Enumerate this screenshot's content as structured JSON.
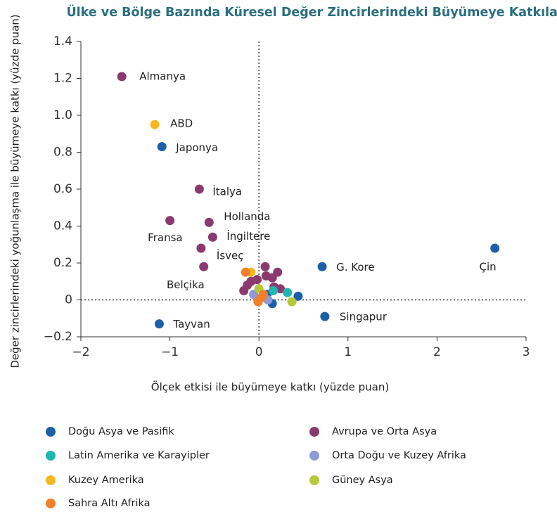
{
  "chart_data": {
    "type": "scatter",
    "title": "Ülke ve Bölge Bazında Küresel Değer Zincirlerindeki Büyümeye Katkılar",
    "x_label": "Ölçek etkisi ile büyümeye katkı (yüzde puan)",
    "y_label": "Değer zincirlerindeki yoğunlaşma ile büyümeye katkı (yüzde puan)",
    "xlim": [
      -2,
      3
    ],
    "xticks": [
      {
        "value": -2,
        "label": "−2"
      },
      {
        "value": -1,
        "label": "−1"
      },
      0,
      1,
      2,
      3
    ],
    "ylim": [
      -0.2,
      1.4
    ],
    "yticks": [
      {
        "value": -0.2,
        "label": "−0.2"
      },
      0,
      0.2,
      0.4,
      0.6,
      0.8,
      {
        "value": 1.0,
        "label": "1.0"
      },
      1.2,
      1.4
    ],
    "series": [
      {
        "name": "Doğu Asya ve Pasifik",
        "color": "#1f5fa8",
        "x": [
          -1.09,
          -1.12,
          0.71,
          2.65,
          0.74,
          0.44,
          0.15,
          0.09
        ],
        "values": [
          0.83,
          -0.13,
          0.18,
          0.28,
          -0.09,
          0.02,
          -0.02,
          0.03
        ],
        "labels": [
          "Japonya",
          "Tayvan",
          "G. Kore",
          "Çin",
          "Singapur",
          null,
          null,
          null
        ]
      },
      {
        "name": "Latin Amerika ve Karayipler",
        "color": "#1fb5b0",
        "x": [
          0.16,
          0.32
        ],
        "values": [
          0.05,
          0.04
        ],
        "labels": [
          null,
          null
        ]
      },
      {
        "name": "Kuzey Amerika",
        "color": "#f5b820",
        "x": [
          -1.17,
          -0.09
        ],
        "values": [
          0.95,
          0.15
        ],
        "labels": [
          "ABD",
          null
        ]
      },
      {
        "name": "Sahra Altı Afrika",
        "color": "#f07f2a",
        "x": [
          -0.15,
          0.02,
          -0.01,
          0.05
        ],
        "values": [
          0.15,
          0.01,
          -0.01,
          0.03
        ],
        "labels": [
          null,
          null,
          null,
          null
        ]
      },
      {
        "name": "Avrupa ve Orta Asya",
        "color": "#8b3a6e",
        "x": [
          -1.54,
          -0.67,
          -0.56,
          -1.0,
          -0.52,
          -0.65,
          -0.62,
          0.07,
          0.21,
          0.08,
          0.15,
          -0.02,
          -0.09,
          -0.13,
          -0.17,
          0.17,
          0.24
        ],
        "values": [
          1.21,
          0.6,
          0.42,
          0.43,
          0.34,
          0.28,
          0.18,
          0.18,
          0.15,
          0.13,
          0.12,
          0.11,
          0.1,
          0.08,
          0.05,
          0.07,
          0.06
        ],
        "labels": [
          "Almanya",
          "İtalya",
          "Hollanda",
          "Fransa",
          "İngiltere",
          "İsveç",
          "Belçika",
          null,
          null,
          null,
          null,
          null,
          null,
          null,
          null,
          null,
          null
        ]
      },
      {
        "name": "Orta Doğu ve Kuzey Afrika",
        "color": "#8f9ad6",
        "x": [
          -0.06,
          0.1
        ],
        "values": [
          0.03,
          0.0
        ],
        "labels": [
          null,
          null
        ]
      },
      {
        "name": "Güney Asya",
        "color": "#b5c83a",
        "x": [
          0.0,
          0.37
        ],
        "values": [
          0.06,
          -0.01
        ],
        "labels": [
          null,
          null
        ]
      }
    ]
  }
}
